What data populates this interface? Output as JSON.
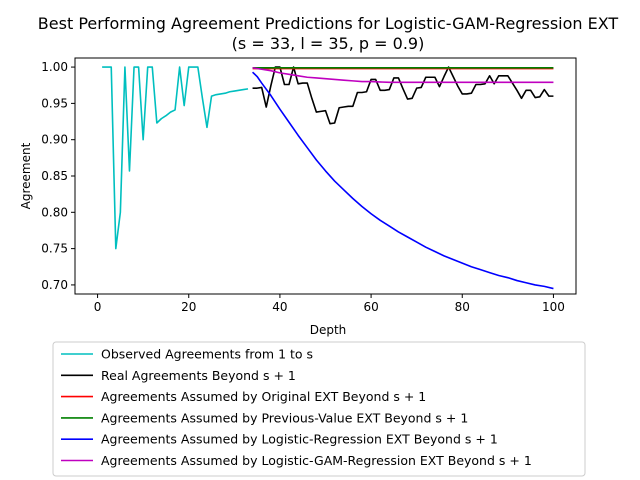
{
  "chart_data": {
    "type": "line",
    "title": "Best Performing Agreement Predictions for Logistic-GAM-Regression EXT",
    "subtitle": "(s = 33, l = 35, p = 0.9)",
    "xlabel": "Depth",
    "ylabel": "Agreement",
    "xlim": [
      -4.95,
      104.95
    ],
    "ylim": [
      0.6875,
      1.0125
    ],
    "xticks": [
      0,
      20,
      40,
      60,
      80,
      100
    ],
    "yticks": [
      0.7,
      0.75,
      0.8,
      0.85,
      0.9,
      0.95,
      1.0
    ],
    "xtick_labels": [
      "0",
      "20",
      "40",
      "60",
      "80",
      "100"
    ],
    "ytick_labels": [
      "0.70",
      "0.75",
      "0.80",
      "0.85",
      "0.90",
      "0.95",
      "1.00"
    ],
    "grid": false,
    "legend_position": "below",
    "series": [
      {
        "name": "Observed Agreements from 1 to s",
        "color": "#00bfbf",
        "points": [
          [
            1,
            1.0
          ],
          [
            2,
            1.0
          ],
          [
            3,
            1.0
          ],
          [
            4,
            0.75
          ],
          [
            5,
            0.8
          ],
          [
            6,
            1.0
          ],
          [
            7,
            0.857
          ],
          [
            8,
            1.0
          ],
          [
            9,
            1.0
          ],
          [
            10,
            0.9
          ],
          [
            11,
            1.0
          ],
          [
            12,
            1.0
          ],
          [
            13,
            0.923
          ],
          [
            14,
            0.929
          ],
          [
            15,
            0.933
          ],
          [
            16,
            0.938
          ],
          [
            17,
            0.941
          ],
          [
            18,
            1.0
          ],
          [
            19,
            0.947
          ],
          [
            20,
            1.0
          ],
          [
            21,
            1.0
          ],
          [
            22,
            1.0
          ],
          [
            23,
            0.957
          ],
          [
            24,
            0.917
          ],
          [
            25,
            0.96
          ],
          [
            26,
            0.962
          ],
          [
            27,
            0.963
          ],
          [
            28,
            0.964
          ],
          [
            29,
            0.966
          ],
          [
            30,
            0.967
          ],
          [
            31,
            0.968
          ],
          [
            32,
            0.969
          ],
          [
            33,
            0.97
          ]
        ]
      },
      {
        "name": "Real Agreements Beyond s + 1",
        "color": "#000000",
        "points": [
          [
            34,
            0.971
          ],
          [
            35,
            0.971
          ],
          [
            36,
            0.972
          ],
          [
            37,
            0.945
          ],
          [
            38,
            0.974
          ],
          [
            39,
            1.0
          ],
          [
            40,
            1.0
          ],
          [
            41,
            0.976
          ],
          [
            42,
            0.976
          ],
          [
            43,
            1.0
          ],
          [
            44,
            0.977
          ],
          [
            45,
            0.978
          ],
          [
            46,
            0.978
          ],
          [
            47,
            0.957
          ],
          [
            48,
            0.938
          ],
          [
            49,
            0.939
          ],
          [
            50,
            0.94
          ],
          [
            51,
            0.922
          ],
          [
            52,
            0.923
          ],
          [
            53,
            0.944
          ],
          [
            54,
            0.945
          ],
          [
            55,
            0.946
          ],
          [
            56,
            0.946
          ],
          [
            57,
            0.965
          ],
          [
            58,
            0.965
          ],
          [
            59,
            0.966
          ],
          [
            60,
            0.983
          ],
          [
            61,
            0.983
          ],
          [
            62,
            0.968
          ],
          [
            63,
            0.968
          ],
          [
            64,
            0.969
          ],
          [
            65,
            0.985
          ],
          [
            66,
            0.985
          ],
          [
            67,
            0.97
          ],
          [
            68,
            0.956
          ],
          [
            69,
            0.957
          ],
          [
            70,
            0.971
          ],
          [
            71,
            0.972
          ],
          [
            72,
            0.986
          ],
          [
            73,
            0.986
          ],
          [
            74,
            0.986
          ],
          [
            75,
            0.973
          ],
          [
            76,
            0.987
          ],
          [
            77,
            1.0
          ],
          [
            78,
            0.987
          ],
          [
            79,
            0.974
          ],
          [
            80,
            0.963
          ],
          [
            81,
            0.963
          ],
          [
            82,
            0.964
          ],
          [
            83,
            0.976
          ],
          [
            84,
            0.976
          ],
          [
            85,
            0.977
          ],
          [
            86,
            0.988
          ],
          [
            87,
            0.977
          ],
          [
            88,
            0.988
          ],
          [
            89,
            0.988
          ],
          [
            90,
            0.988
          ],
          [
            91,
            0.978
          ],
          [
            92,
            0.968
          ],
          [
            93,
            0.957
          ],
          [
            94,
            0.968
          ],
          [
            95,
            0.968
          ],
          [
            96,
            0.958
          ],
          [
            97,
            0.959
          ],
          [
            98,
            0.969
          ],
          [
            99,
            0.96
          ],
          [
            100,
            0.96
          ]
        ]
      },
      {
        "name": "Agreements Assumed by Original EXT Beyond s + 1",
        "color": "#ff0000",
        "points": [
          [
            34,
            0.998
          ],
          [
            100,
            0.998
          ]
        ]
      },
      {
        "name": "Agreements Assumed by Previous-Value EXT Beyond s + 1",
        "color": "#008000",
        "points": [
          [
            34,
            0.999
          ],
          [
            100,
            0.999
          ]
        ]
      },
      {
        "name": "Agreements Assumed by Logistic-Regression EXT Beyond s + 1",
        "color": "#0000ff",
        "points": [
          [
            34,
            0.993
          ],
          [
            35,
            0.987
          ],
          [
            36,
            0.978
          ],
          [
            38,
            0.961
          ],
          [
            40,
            0.942
          ],
          [
            42,
            0.924
          ],
          [
            44,
            0.906
          ],
          [
            46,
            0.889
          ],
          [
            48,
            0.872
          ],
          [
            50,
            0.857
          ],
          [
            52,
            0.843
          ],
          [
            54,
            0.831
          ],
          [
            56,
            0.819
          ],
          [
            58,
            0.808
          ],
          [
            60,
            0.798
          ],
          [
            62,
            0.789
          ],
          [
            64,
            0.781
          ],
          [
            66,
            0.773
          ],
          [
            68,
            0.766
          ],
          [
            70,
            0.759
          ],
          [
            72,
            0.752
          ],
          [
            74,
            0.746
          ],
          [
            76,
            0.74
          ],
          [
            78,
            0.735
          ],
          [
            80,
            0.73
          ],
          [
            82,
            0.725
          ],
          [
            84,
            0.721
          ],
          [
            86,
            0.717
          ],
          [
            88,
            0.713
          ],
          [
            90,
            0.71
          ],
          [
            92,
            0.706
          ],
          [
            94,
            0.703
          ],
          [
            96,
            0.7
          ],
          [
            98,
            0.698
          ],
          [
            100,
            0.695
          ]
        ]
      },
      {
        "name": "Agreements Assumed by Logistic-GAM-Regression EXT Beyond s + 1",
        "color": "#bf00bf",
        "points": [
          [
            34,
            0.999
          ],
          [
            36,
            0.997
          ],
          [
            38,
            0.995
          ],
          [
            40,
            0.992
          ],
          [
            42,
            0.99
          ],
          [
            44,
            0.988
          ],
          [
            46,
            0.986
          ],
          [
            48,
            0.985
          ],
          [
            50,
            0.984
          ],
          [
            52,
            0.983
          ],
          [
            54,
            0.982
          ],
          [
            56,
            0.981
          ],
          [
            58,
            0.98
          ],
          [
            60,
            0.98
          ],
          [
            64,
            0.979
          ],
          [
            70,
            0.979
          ],
          [
            80,
            0.979
          ],
          [
            90,
            0.979
          ],
          [
            100,
            0.979
          ]
        ]
      }
    ]
  }
}
